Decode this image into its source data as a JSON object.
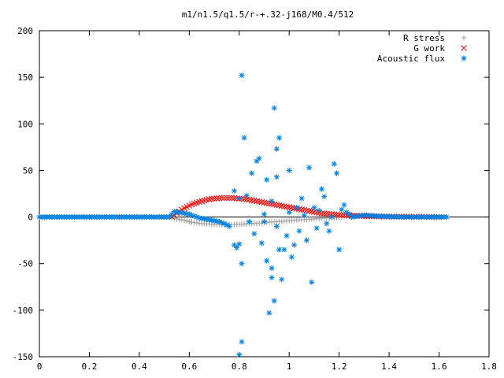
{
  "chart_data": {
    "type": "scatter",
    "title": "m1/n1.5/q1.5/r-+.32-j168/M0.4/512",
    "xlim": [
      0,
      1.8
    ],
    "ylim": [
      -150,
      200
    ],
    "x_ticks": [
      "0",
      "0.2",
      "0.4",
      "0.6",
      "0.8",
      "1",
      "1.2",
      "1.4",
      "1.6",
      "1.8"
    ],
    "y_ticks": [
      "200",
      "150",
      "100",
      "50",
      "0",
      "-50",
      "-100",
      "-150"
    ],
    "legend_position": "top-right",
    "series": [
      {
        "name": "R stress",
        "color": "#a0a0a0",
        "marker": "plus",
        "x": [
          0.0,
          0.05,
          0.1,
          0.15,
          0.2,
          0.25,
          0.3,
          0.35,
          0.4,
          0.45,
          0.5,
          0.53,
          0.55,
          0.58,
          0.6,
          0.62,
          0.65,
          0.68,
          0.7,
          0.72,
          0.75,
          0.78,
          0.8,
          0.82,
          0.85,
          0.88,
          0.9,
          0.92,
          0.95,
          0.98,
          1.0,
          1.02,
          1.05,
          1.08,
          1.1,
          1.12,
          1.15,
          1.18,
          1.2,
          1.22,
          1.25,
          1.28,
          1.3,
          1.35,
          1.4,
          1.45,
          1.5,
          1.55,
          1.6,
          1.63
        ],
        "y": [
          0,
          0,
          0,
          0,
          0,
          0,
          0,
          0,
          0,
          0,
          0,
          0,
          -2,
          -3.5,
          -5,
          -6,
          -7,
          -7.5,
          -8,
          -8,
          -8,
          -8,
          -7.8,
          -7.5,
          -7,
          -6.5,
          -6,
          -5.5,
          -5,
          -4.5,
          -4,
          -3.5,
          -3,
          -2.5,
          -2,
          -1.5,
          -1,
          -0.5,
          0,
          0.5,
          1,
          1.2,
          1.2,
          1,
          0.8,
          0.6,
          0.4,
          0.2,
          0.1,
          0
        ]
      },
      {
        "name": "G work",
        "color": "#ff0000",
        "marker": "cross",
        "x": [
          0.53,
          0.55,
          0.57,
          0.59,
          0.61,
          0.63,
          0.65,
          0.67,
          0.69,
          0.71,
          0.73,
          0.75,
          0.77,
          0.79,
          0.81,
          0.83,
          0.85,
          0.87,
          0.89,
          0.91,
          0.93,
          0.95,
          0.97,
          0.99,
          1.01,
          1.03,
          1.05,
          1.07,
          1.09,
          1.11,
          1.13,
          1.15,
          1.17,
          1.19,
          1.21,
          1.23,
          1.25,
          1.28,
          1.3,
          1.33,
          1.36,
          1.4,
          1.45,
          1.5,
          1.55,
          1.6
        ],
        "y": [
          0,
          4,
          8,
          11,
          13.5,
          15.5,
          17,
          18.5,
          19.5,
          20,
          20.5,
          20.5,
          20.5,
          20,
          19.5,
          19,
          18,
          17,
          16,
          15,
          14,
          13,
          12,
          11,
          10,
          9,
          8,
          7,
          6,
          5,
          4,
          3.5,
          3,
          2.5,
          2,
          1.8,
          1.5,
          1.2,
          1,
          0.8,
          0.6,
          0.4,
          0.3,
          0.2,
          0.1,
          0
        ]
      },
      {
        "name": "Acoustic flux",
        "color": "#0080e0",
        "marker": "star",
        "x": [
          0.0,
          0.04,
          0.08,
          0.12,
          0.16,
          0.2,
          0.24,
          0.28,
          0.32,
          0.36,
          0.4,
          0.44,
          0.48,
          0.52,
          0.54,
          0.56,
          0.58,
          0.6,
          0.62,
          0.64,
          0.66,
          0.68,
          0.7,
          0.72,
          0.74,
          0.76,
          0.78,
          0.78,
          0.79,
          0.8,
          0.8,
          0.81,
          0.81,
          0.82,
          0.83,
          0.84,
          0.85,
          0.86,
          0.87,
          0.88,
          0.89,
          0.9,
          0.91,
          0.92,
          0.93,
          0.93,
          0.94,
          0.95,
          0.95,
          0.96,
          0.97,
          0.98,
          0.99,
          1.0,
          1.0,
          1.01,
          1.02,
          1.03,
          1.04,
          1.05,
          1.06,
          1.07,
          1.08,
          1.09,
          1.1,
          1.11,
          1.12,
          1.13,
          1.14,
          1.15,
          1.16,
          1.17,
          1.18,
          1.19,
          1.2,
          1.21,
          1.22,
          1.23,
          1.24,
          1.25,
          1.3,
          1.35,
          1.4,
          1.45,
          1.5,
          1.55,
          1.6,
          1.63,
          0.8,
          0.94,
          0.81,
          0.93,
          0.96,
          0.9,
          0.91,
          0.95
        ],
        "y": [
          0,
          0,
          0,
          0,
          0,
          0,
          0,
          0,
          0,
          0,
          0,
          0,
          0,
          0,
          6,
          5,
          4,
          3,
          1,
          -1,
          -2,
          -3,
          -4,
          -5,
          -7,
          -10,
          -30,
          28,
          -33,
          20,
          -148,
          152,
          -134,
          85,
          23,
          -5,
          47,
          -18,
          60,
          63,
          -28,
          -5,
          40,
          -103,
          -55,
          17,
          -90,
          73,
          -10,
          85,
          -67,
          -35,
          -20,
          50,
          5,
          -43,
          -30,
          10,
          -15,
          20,
          2,
          -25,
          53,
          -70,
          10,
          -12,
          7,
          30,
          22,
          -7,
          -15,
          0,
          57,
          47,
          -35,
          8,
          13,
          5,
          3,
          0,
          2,
          1,
          0.5,
          0,
          0,
          0,
          0,
          0,
          -29,
          117,
          -50,
          -65,
          -35,
          3,
          -47,
          43
        ]
      }
    ]
  }
}
